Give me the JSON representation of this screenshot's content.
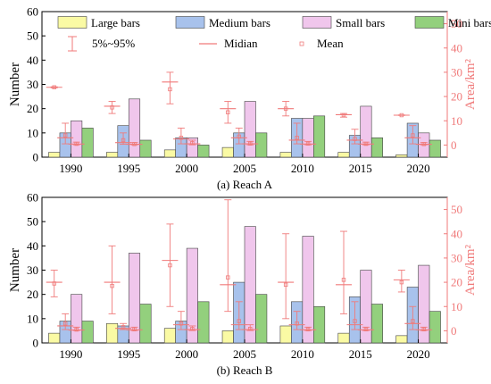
{
  "legend": {
    "large_label": "Large bars",
    "medium_label": "Medium bars",
    "small_label": "Small bars",
    "mini_label": "Mini bars",
    "range_label": "5%~95%",
    "median_label": "Midian",
    "mean_label": "Mean"
  },
  "colors": {
    "large": "#fafaa4",
    "medium": "#a8c2ec",
    "small": "#f0c6ec",
    "mini": "#93d07d",
    "bar_edge": "#444444",
    "area": "#f07a7a"
  },
  "chart_data": [
    {
      "type": "bar",
      "caption": "(a) Reach A",
      "categories": [
        "1990",
        "1995",
        "2000",
        "2005",
        "2010",
        "2015",
        "2020"
      ],
      "ylabel": "Number",
      "ylim": [
        0,
        60
      ],
      "yticks": [
        0,
        10,
        20,
        30,
        40,
        50,
        60
      ],
      "y2label": "Area/km²",
      "y2lim": [
        -5,
        55
      ],
      "y2ticks": [
        0,
        10,
        20,
        30,
        40,
        50
      ],
      "series": [
        {
          "name": "Large bars",
          "values": [
            2,
            2,
            3,
            4,
            2,
            2,
            1
          ]
        },
        {
          "name": "Medium bars",
          "values": [
            10,
            13,
            8,
            10,
            16,
            9,
            14
          ]
        },
        {
          "name": "Small bars",
          "values": [
            15,
            24,
            8,
            23,
            16,
            21,
            10
          ]
        },
        {
          "name": "Mini bars",
          "values": [
            12,
            7,
            5,
            10,
            17,
            8,
            7
          ]
        }
      ],
      "area_stats": [
        {
          "category": "1990",
          "group": "Large bars",
          "p5": 23.6,
          "p95": 24.0,
          "median": 23.8,
          "mean": 23.8
        },
        {
          "category": "1990",
          "group": "Medium bars",
          "p5": 0.5,
          "p95": 9.0,
          "median": 3.0,
          "mean": 4.0
        },
        {
          "category": "1990",
          "group": "Small bars",
          "p5": 0.1,
          "p95": 1.2,
          "median": 0.4,
          "mean": 0.5
        },
        {
          "category": "1995",
          "group": "Large bars",
          "p5": 13.0,
          "p95": 18.0,
          "median": 16.0,
          "mean": 15.5
        },
        {
          "category": "1995",
          "group": "Medium bars",
          "p5": 0.3,
          "p95": 5.0,
          "median": 1.0,
          "mean": 2.0
        },
        {
          "category": "1995",
          "group": "Small bars",
          "p5": 0.1,
          "p95": 1.0,
          "median": 0.3,
          "mean": 0.4
        },
        {
          "category": "2000",
          "group": "Large bars",
          "p5": 17.0,
          "p95": 30.0,
          "median": 26.0,
          "mean": 23.0
        },
        {
          "category": "2000",
          "group": "Medium bars",
          "p5": 0.5,
          "p95": 7.0,
          "median": 2.5,
          "mean": 3.0
        },
        {
          "category": "2000",
          "group": "Small bars",
          "p5": 0.1,
          "p95": 2.0,
          "median": 0.5,
          "mean": 0.8
        },
        {
          "category": "2005",
          "group": "Large bars",
          "p5": 9.0,
          "p95": 18.0,
          "median": 15.0,
          "mean": 13.5
        },
        {
          "category": "2005",
          "group": "Medium bars",
          "p5": 0.5,
          "p95": 7.0,
          "median": 3.0,
          "mean": 3.5
        },
        {
          "category": "2005",
          "group": "Small bars",
          "p5": 0.1,
          "p95": 1.5,
          "median": 0.5,
          "mean": 0.6
        },
        {
          "category": "2010",
          "group": "Large bars",
          "p5": 12.0,
          "p95": 18.0,
          "median": 15.0,
          "mean": 15.0
        },
        {
          "category": "2010",
          "group": "Medium bars",
          "p5": 0.5,
          "p95": 9.0,
          "median": 2.0,
          "mean": 3.0
        },
        {
          "category": "2010",
          "group": "Small bars",
          "p5": 0.1,
          "p95": 1.5,
          "median": 0.4,
          "mean": 0.6
        },
        {
          "category": "2015",
          "group": "Large bars",
          "p5": 11.5,
          "p95": 13.0,
          "median": 12.5,
          "mean": 12.3
        },
        {
          "category": "2015",
          "group": "Medium bars",
          "p5": 0.5,
          "p95": 6.5,
          "median": 2.0,
          "mean": 2.5
        },
        {
          "category": "2015",
          "group": "Small bars",
          "p5": 0.1,
          "p95": 1.2,
          "median": 0.4,
          "mean": 0.5
        },
        {
          "category": "2020",
          "group": "Large bars",
          "p5": 12.2,
          "p95": 12.4,
          "median": 12.3,
          "mean": 12.3
        },
        {
          "category": "2020",
          "group": "Medium bars",
          "p5": 0.5,
          "p95": 8.0,
          "median": 3.0,
          "mean": 4.0
        },
        {
          "category": "2020",
          "group": "Small bars",
          "p5": 0.1,
          "p95": 1.0,
          "median": 0.3,
          "mean": 0.4
        }
      ]
    },
    {
      "type": "bar",
      "caption": "(b) Reach B",
      "categories": [
        "1990",
        "1995",
        "2000",
        "2005",
        "2010",
        "2015",
        "2020"
      ],
      "ylabel": "Number",
      "ylim": [
        0,
        60
      ],
      "yticks": [
        0,
        10,
        20,
        30,
        40,
        50,
        60
      ],
      "y2label": "Area/km²",
      "y2lim": [
        -5,
        55
      ],
      "y2ticks": [
        0,
        10,
        20,
        30,
        40,
        50
      ],
      "series": [
        {
          "name": "Large bars",
          "values": [
            4,
            8,
            6,
            5,
            7,
            4,
            3
          ]
        },
        {
          "name": "Medium bars",
          "values": [
            9,
            7,
            9,
            25,
            17,
            19,
            23
          ]
        },
        {
          "name": "Small bars",
          "values": [
            20,
            37,
            39,
            48,
            44,
            30,
            32
          ]
        },
        {
          "name": "Mini bars",
          "values": [
            9,
            16,
            17,
            20,
            15,
            16,
            13
          ]
        }
      ],
      "area_stats": [
        {
          "category": "1990",
          "group": "Large bars",
          "p5": 14.0,
          "p95": 25.0,
          "median": 20.0,
          "mean": 19.5
        },
        {
          "category": "1990",
          "group": "Medium bars",
          "p5": 0.5,
          "p95": 7.0,
          "median": 2.0,
          "mean": 3.0
        },
        {
          "category": "1990",
          "group": "Small bars",
          "p5": 0.1,
          "p95": 1.5,
          "median": 0.3,
          "mean": 0.5
        },
        {
          "category": "1995",
          "group": "Large bars",
          "p5": 7.0,
          "p95": 35.0,
          "median": 20.0,
          "mean": 18.5
        },
        {
          "category": "1995",
          "group": "Medium bars",
          "p5": 0.5,
          "p95": 3.0,
          "median": 1.0,
          "mean": 1.5
        },
        {
          "category": "1995",
          "group": "Small bars",
          "p5": 0.1,
          "p95": 1.5,
          "median": 0.4,
          "mean": 0.6
        },
        {
          "category": "2000",
          "group": "Large bars",
          "p5": 10.0,
          "p95": 44.0,
          "median": 29.0,
          "mean": 27.0
        },
        {
          "category": "2000",
          "group": "Medium bars",
          "p5": 0.5,
          "p95": 8.0,
          "median": 2.5,
          "mean": 3.0
        },
        {
          "category": "2000",
          "group": "Small bars",
          "p5": 0.1,
          "p95": 2.0,
          "median": 0.5,
          "mean": 0.8
        },
        {
          "category": "2005",
          "group": "Large bars",
          "p5": 8.0,
          "p95": 54.0,
          "median": 19.0,
          "mean": 22.0
        },
        {
          "category": "2005",
          "group": "Medium bars",
          "p5": 0.5,
          "p95": 12.0,
          "median": 2.5,
          "mean": 4.0
        },
        {
          "category": "2005",
          "group": "Small bars",
          "p5": 0.1,
          "p95": 2.5,
          "median": 0.5,
          "mean": 0.8
        },
        {
          "category": "2010",
          "group": "Large bars",
          "p5": 5.0,
          "p95": 40.0,
          "median": 20.0,
          "mean": 19.0
        },
        {
          "category": "2010",
          "group": "Medium bars",
          "p5": 0.5,
          "p95": 8.0,
          "median": 2.5,
          "mean": 3.0
        },
        {
          "category": "2010",
          "group": "Small bars",
          "p5": 0.1,
          "p95": 1.5,
          "median": 0.4,
          "mean": 0.6
        },
        {
          "category": "2015",
          "group": "Large bars",
          "p5": 7.0,
          "p95": 41.0,
          "median": 19.0,
          "mean": 21.0
        },
        {
          "category": "2015",
          "group": "Medium bars",
          "p5": 0.5,
          "p95": 12.0,
          "median": 2.5,
          "mean": 4.0
        },
        {
          "category": "2015",
          "group": "Small bars",
          "p5": 0.1,
          "p95": 1.5,
          "median": 0.4,
          "mean": 0.6
        },
        {
          "category": "2020",
          "group": "Large bars",
          "p5": 16.0,
          "p95": 25.0,
          "median": 21.0,
          "mean": 20.0
        },
        {
          "category": "2020",
          "group": "Medium bars",
          "p5": 0.5,
          "p95": 10.0,
          "median": 3.0,
          "mean": 4.0
        },
        {
          "category": "2020",
          "group": "Small bars",
          "p5": 0.1,
          "p95": 1.5,
          "median": 0.4,
          "mean": 0.6
        }
      ]
    }
  ]
}
